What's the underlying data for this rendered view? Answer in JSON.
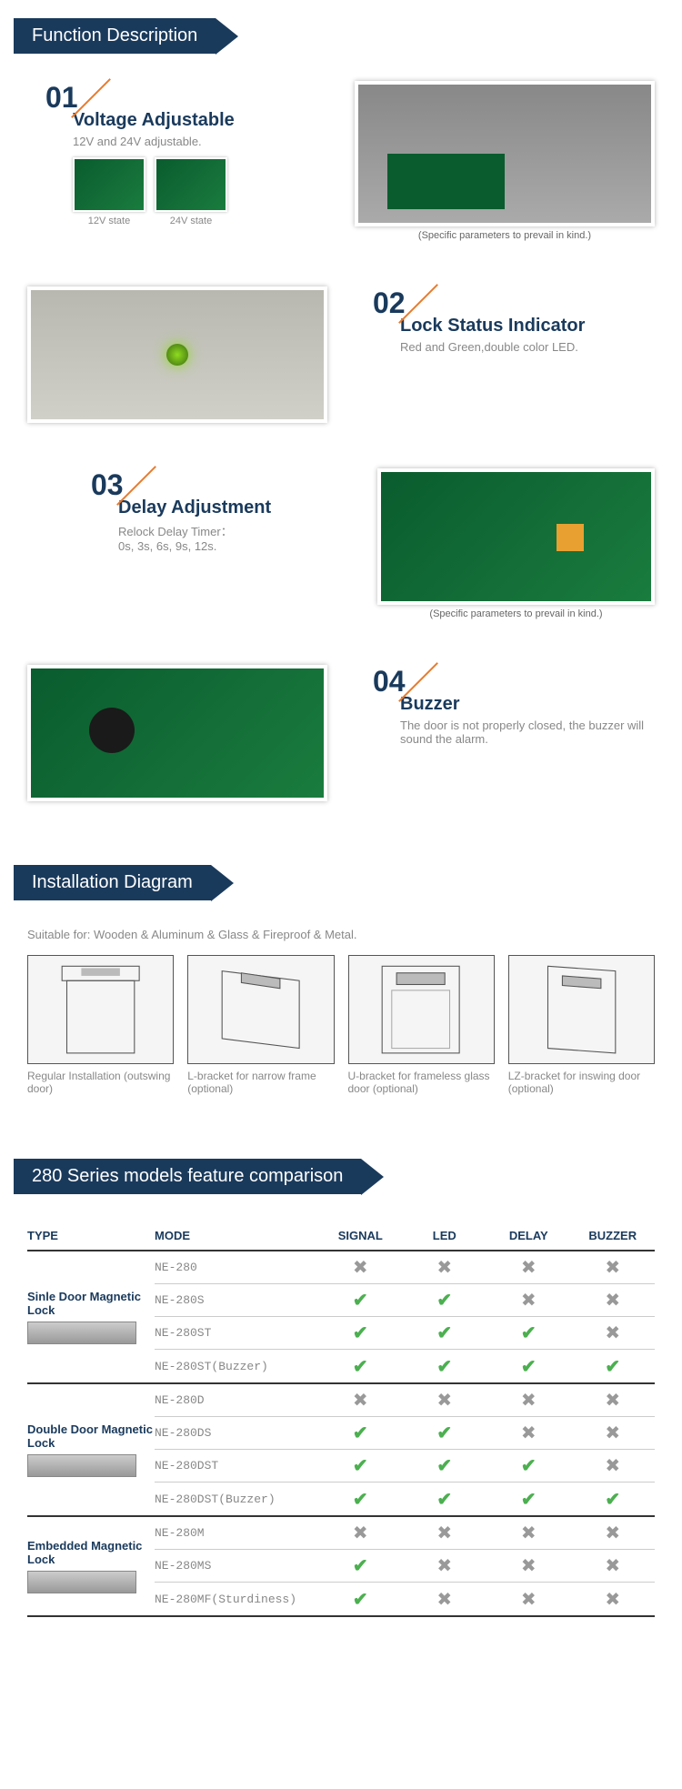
{
  "sections": {
    "func": "Function Description",
    "install": "Installation Diagram",
    "compare": "280 Series models feature comparison"
  },
  "features": [
    {
      "num": "01",
      "title": "Voltage Adjustable",
      "desc": "12V and 24V adjustable.",
      "sub_labels": [
        "12V state",
        "24V state"
      ],
      "img_caption": "(Specific parameters to prevail in kind.)"
    },
    {
      "num": "02",
      "title": "Lock Status Indicator",
      "desc": "Red and Green,double color LED."
    },
    {
      "num": "03",
      "title": "Delay Adjustment",
      "desc": "Relock Delay Timer：\n0s, 3s, 6s, 9s, 12s.",
      "img_caption": "(Specific parameters to prevail in kind.)"
    },
    {
      "num": "04",
      "title": "Buzzer",
      "desc": "The door is not properly closed, the buzzer will sound the alarm."
    }
  ],
  "install": {
    "desc": "Suitable for: Wooden & Aluminum & Glass & Fireproof & Metal.",
    "items": [
      "Regular Installation (outswing door)",
      "L-bracket for narrow frame (optional)",
      "U-bracket for frameless glass door (optional)",
      "LZ-bracket for inswing door (optional)"
    ]
  },
  "compare": {
    "headers": [
      "TYPE",
      "MODE",
      "SIGNAL",
      "LED",
      "DELAY",
      "BUZZER"
    ],
    "groups": [
      {
        "type": "Sinle Door Magnetic Lock",
        "rows": [
          {
            "mode": "NE-280",
            "feats": [
              false,
              false,
              false,
              false
            ]
          },
          {
            "mode": "NE-280S",
            "feats": [
              true,
              true,
              false,
              false
            ]
          },
          {
            "mode": "NE-280ST",
            "feats": [
              true,
              true,
              true,
              false
            ]
          },
          {
            "mode": "NE-280ST(Buzzer)",
            "feats": [
              true,
              true,
              true,
              true
            ]
          }
        ]
      },
      {
        "type": "Double Door Magnetic Lock",
        "rows": [
          {
            "mode": "NE-280D",
            "feats": [
              false,
              false,
              false,
              false
            ]
          },
          {
            "mode": "NE-280DS",
            "feats": [
              true,
              true,
              false,
              false
            ]
          },
          {
            "mode": "NE-280DST",
            "feats": [
              true,
              true,
              true,
              false
            ]
          },
          {
            "mode": "NE-280DST(Buzzer)",
            "feats": [
              true,
              true,
              true,
              true
            ]
          }
        ]
      },
      {
        "type": "Embedded Magnetic Lock",
        "rows": [
          {
            "mode": "NE-280M",
            "feats": [
              false,
              false,
              false,
              false
            ]
          },
          {
            "mode": "NE-280MS",
            "feats": [
              true,
              false,
              false,
              false
            ]
          },
          {
            "mode": "NE-280MF(Sturdiness)",
            "feats": [
              true,
              false,
              false,
              false
            ]
          }
        ]
      }
    ]
  },
  "colors": {
    "primary": "#1a3a5c",
    "accent": "#e87a2e",
    "check": "#4caf50",
    "cross": "#999999",
    "muted": "#888888"
  }
}
